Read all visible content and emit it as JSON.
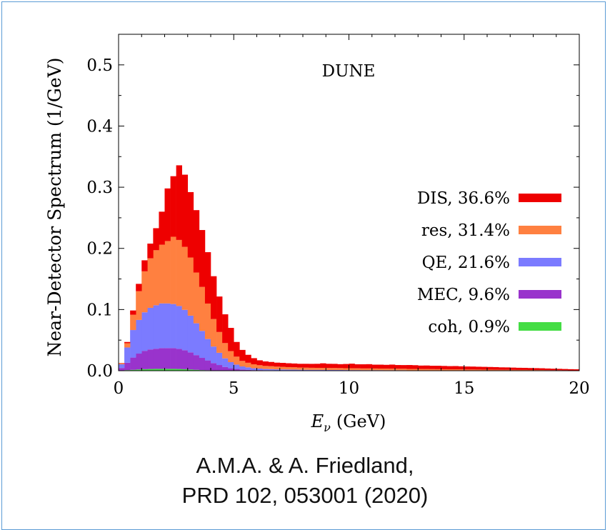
{
  "chart_data": {
    "type": "bar",
    "stacked": true,
    "title": "DUNE",
    "xlabel": "E_ν (GeV)",
    "xlabel_main": "E",
    "xlabel_sub": "ν",
    "xlabel_unit": "(GeV)",
    "ylabel": "Near-Detector Spectrum (1/GeV)",
    "xlim": [
      0,
      20
    ],
    "ylim": [
      0,
      0.55
    ],
    "xticks": [
      "0",
      "5",
      "10",
      "15",
      "20"
    ],
    "yticks": [
      "0.0",
      "0.1",
      "0.2",
      "0.3",
      "0.4",
      "0.5"
    ],
    "bin_width": 0.25,
    "x": [
      0.125,
      0.375,
      0.625,
      0.875,
      1.125,
      1.375,
      1.625,
      1.875,
      2.125,
      2.375,
      2.625,
      2.875,
      3.125,
      3.375,
      3.625,
      3.875,
      4.125,
      4.375,
      4.625,
      4.875,
      5.125,
      5.375,
      5.625,
      5.875,
      6.125,
      6.375,
      6.625,
      6.875,
      7.125,
      7.375,
      7.625,
      7.875,
      8.125,
      8.375,
      8.625,
      8.875,
      9.125,
      9.375,
      9.625,
      9.875,
      10.125,
      10.375,
      10.625,
      10.875,
      11.125,
      11.375,
      11.625,
      11.875,
      12.125,
      12.375,
      12.625,
      12.875,
      13.125,
      13.375,
      13.625,
      13.875,
      14.125,
      14.375,
      14.625,
      14.875,
      15.125,
      15.375,
      15.625,
      15.875,
      16.125,
      16.375,
      16.625,
      16.875,
      17.125,
      17.375,
      17.625,
      17.875,
      18.125,
      18.375,
      18.625,
      18.875,
      19.125,
      19.375,
      19.625,
      19.875
    ],
    "legend_position": "right",
    "series": [
      {
        "name": "coh, 0.9%",
        "color": "#44dd44",
        "values": [
          0.0005,
          0.001,
          0.0015,
          0.002,
          0.0025,
          0.0028,
          0.003,
          0.003,
          0.003,
          0.003,
          0.0028,
          0.0025,
          0.002,
          0.0015,
          0.001,
          0.0008,
          0.0005,
          0.0003,
          0.0002,
          0,
          0,
          0,
          0,
          0,
          0,
          0,
          0,
          0,
          0,
          0,
          0,
          0,
          0,
          0,
          0,
          0,
          0,
          0,
          0,
          0,
          0,
          0,
          0,
          0,
          0,
          0,
          0,
          0,
          0,
          0,
          0,
          0,
          0,
          0,
          0,
          0,
          0,
          0,
          0,
          0,
          0,
          0,
          0,
          0,
          0,
          0,
          0,
          0,
          0,
          0,
          0,
          0,
          0,
          0,
          0,
          0,
          0,
          0,
          0,
          0
        ]
      },
      {
        "name": "MEC, 9.6%",
        "color": "#9933cc",
        "values": [
          0.004,
          0.012,
          0.02,
          0.026,
          0.03,
          0.032,
          0.033,
          0.034,
          0.034,
          0.034,
          0.033,
          0.031,
          0.028,
          0.024,
          0.02,
          0.016,
          0.012,
          0.009,
          0.006,
          0.004,
          0.003,
          0.002,
          0.0015,
          0.001,
          0.001,
          0.0008,
          0.0008,
          0.0006,
          0.0006,
          0.0005,
          0.0005,
          0.0004,
          0.0004,
          0.0004,
          0.0004,
          0.0003,
          0.0003,
          0.0003,
          0.0003,
          0.0003,
          0.0002,
          0.0002,
          0.0002,
          0.0002,
          0.0002,
          0.0002,
          0.0002,
          0.0002,
          0.0002,
          0.0002,
          0.0001,
          0.0001,
          0.0001,
          0.0001,
          0.0001,
          0.0001,
          0.0001,
          0.0001,
          0.0001,
          0.0001,
          0.0001,
          0.0001,
          0.0001,
          0.0001,
          0.0001,
          0.0001,
          0.0001,
          0.0001,
          0.0001,
          0.0001,
          0.0001,
          0.0001,
          0.0001,
          0.0001,
          0.0001,
          0.0001,
          0.0001,
          0.0001,
          0.0001,
          0.0001
        ]
      },
      {
        "name": "QE, 21.6%",
        "color": "#7b7bff",
        "values": [
          0.006,
          0.025,
          0.045,
          0.055,
          0.063,
          0.068,
          0.071,
          0.073,
          0.073,
          0.072,
          0.07,
          0.066,
          0.06,
          0.052,
          0.044,
          0.035,
          0.027,
          0.02,
          0.014,
          0.01,
          0.007,
          0.005,
          0.004,
          0.003,
          0.0025,
          0.002,
          0.0018,
          0.0016,
          0.0015,
          0.0014,
          0.0013,
          0.0012,
          0.0011,
          0.001,
          0.001,
          0.001,
          0.0009,
          0.0009,
          0.0009,
          0.0008,
          0.0008,
          0.0008,
          0.0007,
          0.0007,
          0.0007,
          0.0007,
          0.0006,
          0.0006,
          0.0006,
          0.0006,
          0.0005,
          0.0005,
          0.0005,
          0.0005,
          0.0005,
          0.0004,
          0.0004,
          0.0004,
          0.0004,
          0.0004,
          0.0003,
          0.0003,
          0.0003,
          0.0003,
          0.0003,
          0.0003,
          0.0002,
          0.0002,
          0.0002,
          0.0002,
          0.0002,
          0.0002,
          0.0002,
          0.0002,
          0.0001,
          0.0001,
          0.0001,
          0.0001,
          0.0001,
          0.0001
        ]
      },
      {
        "name": "res, 31.4%",
        "color": "#ff8040",
        "values": [
          0.0015,
          0.007,
          0.025,
          0.047,
          0.067,
          0.081,
          0.09,
          0.096,
          0.102,
          0.11,
          0.108,
          0.103,
          0.095,
          0.083,
          0.072,
          0.058,
          0.045,
          0.034,
          0.025,
          0.018,
          0.013,
          0.009,
          0.0075,
          0.0065,
          0.0055,
          0.005,
          0.0048,
          0.0045,
          0.0043,
          0.004,
          0.0038,
          0.0036,
          0.0035,
          0.0034,
          0.0033,
          0.0033,
          0.0032,
          0.0032,
          0.0031,
          0.003,
          0.003,
          0.0029,
          0.0028,
          0.0028,
          0.0027,
          0.0026,
          0.0026,
          0.0025,
          0.0024,
          0.0024,
          0.0023,
          0.0022,
          0.0022,
          0.0021,
          0.002,
          0.002,
          0.0019,
          0.0018,
          0.0018,
          0.0017,
          0.0016,
          0.0016,
          0.0015,
          0.0014,
          0.0014,
          0.0013,
          0.0012,
          0.0012,
          0.0011,
          0.001,
          0.001,
          0.0009,
          0.0008,
          0.0008,
          0.0007,
          0.0006,
          0.0006,
          0.0005,
          0.0004,
          0.0004
        ]
      },
      {
        "name": "DIS, 36.6%",
        "color": "#ee0000",
        "values": [
          0.0005,
          0.002,
          0.007,
          0.012,
          0.018,
          0.024,
          0.036,
          0.054,
          0.086,
          0.099,
          0.122,
          0.118,
          0.107,
          0.102,
          0.093,
          0.084,
          0.07,
          0.058,
          0.047,
          0.038,
          0.024,
          0.018,
          0.013,
          0.01,
          0.008,
          0.0074,
          0.0069,
          0.0065,
          0.0064,
          0.0063,
          0.0062,
          0.0061,
          0.0063,
          0.0064,
          0.0066,
          0.0075,
          0.0069,
          0.0068,
          0.0064,
          0.0069,
          0.0075,
          0.0066,
          0.0068,
          0.007,
          0.0063,
          0.0064,
          0.0062,
          0.0067,
          0.0061,
          0.006,
          0.0064,
          0.0062,
          0.0056,
          0.0058,
          0.0055,
          0.0056,
          0.0054,
          0.0052,
          0.0053,
          0.005,
          0.0049,
          0.0048,
          0.0046,
          0.0045,
          0.0043,
          0.0042,
          0.004,
          0.0039,
          0.0037,
          0.0035,
          0.0034,
          0.0032,
          0.0031,
          0.0029,
          0.0027,
          0.0025,
          0.0023,
          0.0021,
          0.0019,
          0.0017
        ]
      }
    ],
    "legend_order": [
      "DIS, 36.6%",
      "res, 31.4%",
      "QE, 21.6%",
      "MEC, 9.6%",
      "coh, 0.9%"
    ]
  },
  "caption": {
    "line1": "A.M.A. & A. Friedland,",
    "line2": "PRD 102, 053001 (2020)"
  }
}
